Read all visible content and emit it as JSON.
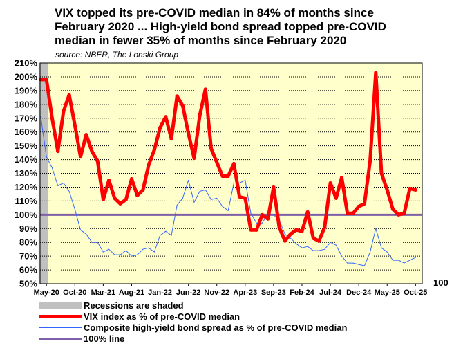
{
  "title_lines": [
    "VIX topped its pre-COVID median in 84% of months since",
    "February 2020 ... High-yield bond spread topped pre-COVID",
    "median in fewer 35% of months since February 2020"
  ],
  "source": "source: NBER, The Lonski Group",
  "colors": {
    "plot_bg": "#ffffcc",
    "vix": "#ff0000",
    "spread": "#3366ff",
    "line100": "#7f5fa8",
    "recession": "#c0c0c0"
  },
  "chart_data": {
    "type": "line",
    "title": "VIX topped its pre-COVID median in 84% of months since February 2020 ... High-yield bond spread topped pre-COVID median in fewer 35% of months since February 2020",
    "ylim": [
      50,
      210
    ],
    "y_ticks": [
      "50%",
      "60%",
      "70%",
      "80%",
      "90%",
      "100%",
      "110%",
      "120%",
      "130%",
      "140%",
      "150%",
      "160%",
      "170%",
      "180%",
      "190%",
      "200%",
      "210%"
    ],
    "x_start": "Feb-20",
    "x_ticks": [
      "May-20",
      "Oct-20",
      "Mar-21",
      "Aug-21",
      "Jan-22",
      "Jun-22",
      "Nov-22",
      "Apr-23",
      "Sep-23",
      "Feb-24",
      "Jul-24",
      "Dec-24",
      "May-25",
      "Oct-25"
    ],
    "x_tick_offsets": [
      3,
      8,
      13,
      18,
      23,
      28,
      33,
      38,
      43,
      48,
      53,
      58,
      63,
      68
    ],
    "recession_months": [
      0,
      1,
      2
    ],
    "extra_label": "100",
    "series": [
      {
        "name": "VIX index as % of pre-COVID median",
        "start": 0,
        "values": [
          198,
          198,
          170,
          146,
          175,
          187,
          165,
          142,
          158,
          146,
          139,
          111,
          125,
          112,
          108,
          111,
          126,
          114,
          118,
          136,
          147,
          163,
          171,
          155,
          186,
          179,
          159,
          141,
          172,
          191,
          148,
          138,
          128,
          128,
          137,
          113,
          112,
          89,
          89,
          100,
          97,
          120,
          91,
          81,
          86,
          89,
          88,
          102,
          83,
          81,
          91,
          123,
          112,
          127,
          101,
          101,
          106,
          108,
          139,
          203,
          130,
          118,
          104,
          100,
          101,
          119,
          118
        ]
      },
      {
        "name": "Composite high-yield bond spread as % of pre-COVID median",
        "start": 0,
        "values": [
          171,
          142,
          134,
          121,
          123,
          117,
          104,
          89,
          86,
          80,
          80,
          73,
          75,
          71,
          71,
          74,
          70,
          71,
          75,
          76,
          73,
          85,
          88,
          85,
          107,
          112,
          125,
          109,
          117,
          118,
          111,
          112,
          106,
          103,
          123,
          123,
          125,
          101,
          94,
          94,
          101,
          100,
          96,
          86,
          83,
          79,
          76,
          77,
          74,
          74,
          75,
          80,
          78,
          70,
          65,
          65,
          64,
          63,
          73,
          90,
          76,
          73,
          67,
          67,
          65,
          67,
          69
        ]
      },
      {
        "name": "100% line",
        "constant": 100
      }
    ],
    "legend": [
      "Recessions are shaded",
      "VIX index as % of pre-COVID median",
      "Composite high-yield bond spread as % of pre-COVID median",
      "100% line"
    ]
  }
}
